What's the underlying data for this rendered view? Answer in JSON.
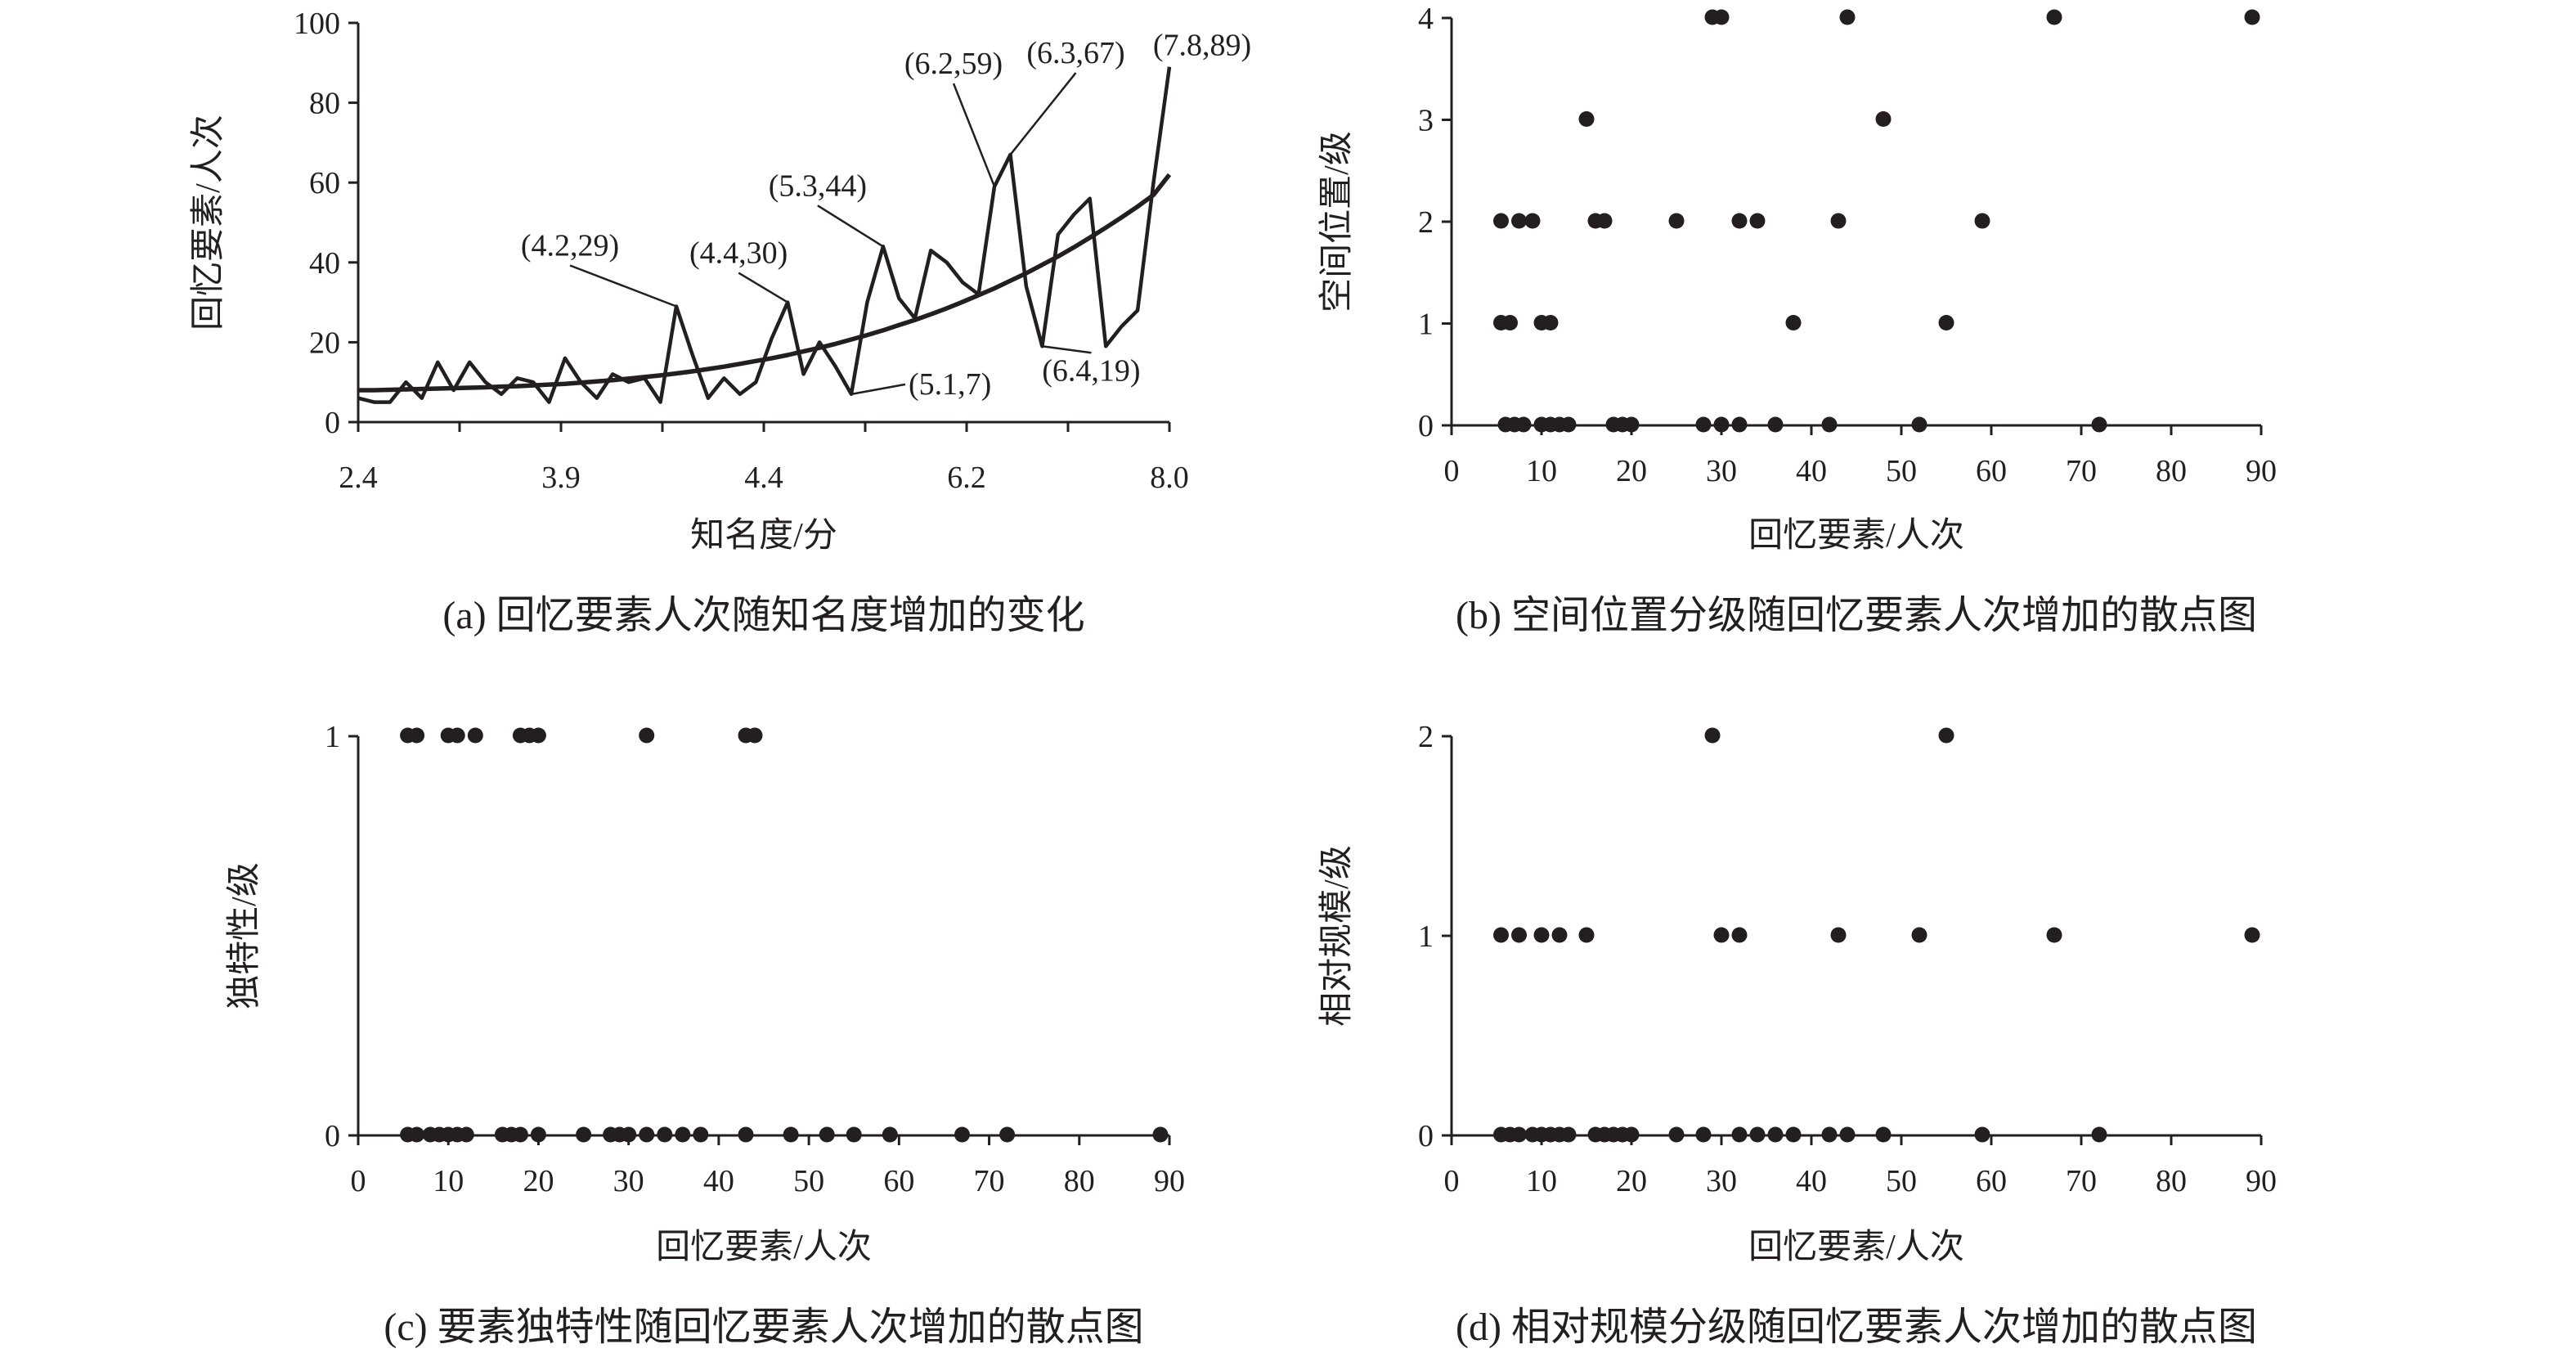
{
  "colors": {
    "ink": "#231f20",
    "background": "#ffffff"
  },
  "chart_data": [
    {
      "id": "a",
      "type": "line",
      "caption": "(a) 回忆要素人次随知名度增加的变化",
      "xlabel": "知名度/分",
      "ylabel": "回忆要素/人次",
      "ylim": [
        0,
        100
      ],
      "yticks": [
        "0",
        "20",
        "40",
        "60",
        "80",
        "100"
      ],
      "xtick_labels": [
        "2.4",
        "3.9",
        "4.4",
        "6.2",
        "8.0"
      ],
      "series": [
        {
          "style": "jagged",
          "values": [
            6,
            5,
            5,
            10,
            6,
            15,
            8,
            15,
            10,
            7,
            11,
            10,
            5,
            16,
            10,
            6,
            12,
            10,
            11,
            5,
            29,
            17,
            6,
            11,
            7,
            10,
            21,
            30,
            12,
            20,
            14,
            7,
            30,
            44,
            31,
            26,
            43,
            40,
            35,
            32,
            59,
            67,
            34,
            19,
            47,
            52,
            56,
            19,
            24,
            28,
            60,
            89
          ]
        },
        {
          "style": "smooth trend",
          "values": [
            8,
            8,
            8.1,
            8.2,
            8.3,
            8.4,
            8.5,
            8.6,
            8.7,
            8.9,
            9,
            9.2,
            9.4,
            9.6,
            9.9,
            10.2,
            10.5,
            10.9,
            11.3,
            11.7,
            12.2,
            12.7,
            13.3,
            13.9,
            14.6,
            15.3,
            16,
            16.8,
            17.7,
            18.6,
            19.6,
            20.7,
            21.8,
            23,
            24.3,
            25.6,
            27,
            28.5,
            30.1,
            31.8,
            33.5,
            35.4,
            37.3,
            39.4,
            41.5,
            43.8,
            46.2,
            48.7,
            51.3,
            54,
            56.9,
            62
          ]
        }
      ],
      "annotations": [
        {
          "label": "(4.2,29)",
          "index": 20,
          "value": 29
        },
        {
          "label": "(4.4,30)",
          "index": 27,
          "value": 30
        },
        {
          "label": "(5.3,44)",
          "index": 33,
          "value": 44
        },
        {
          "label": "(5.1,7)",
          "index": 31,
          "value": 7
        },
        {
          "label": "(6.2,59)",
          "index": 40,
          "value": 59
        },
        {
          "label": "(6.3,67)",
          "index": 41,
          "value": 67
        },
        {
          "label": "(6.4,19)",
          "index": 43,
          "value": 19
        },
        {
          "label": "(7.8,89)",
          "index": 51,
          "value": 89
        }
      ]
    },
    {
      "id": "b",
      "type": "scatter",
      "caption": "(b) 空间位置分级随回忆要素人次增加的散点图",
      "xlabel": "回忆要素/人次",
      "ylabel": "空间位置/级",
      "xlim": [
        0,
        90
      ],
      "ylim": [
        0,
        4
      ],
      "xticks": [
        "0",
        "10",
        "20",
        "30",
        "40",
        "50",
        "60",
        "70",
        "80",
        "90"
      ],
      "yticks": [
        "0",
        "1",
        "2",
        "3",
        "4"
      ],
      "points": [
        [
          6,
          0
        ],
        [
          7,
          0
        ],
        [
          8,
          0
        ],
        [
          10,
          0
        ],
        [
          11,
          0
        ],
        [
          12,
          0
        ],
        [
          13,
          0
        ],
        [
          18,
          0
        ],
        [
          19,
          0
        ],
        [
          20,
          0
        ],
        [
          28,
          0
        ],
        [
          30,
          0
        ],
        [
          32,
          0
        ],
        [
          36,
          0
        ],
        [
          42,
          0
        ],
        [
          52,
          0
        ],
        [
          72,
          0
        ],
        [
          5.5,
          1
        ],
        [
          6.5,
          1
        ],
        [
          10,
          1
        ],
        [
          11,
          1
        ],
        [
          38,
          1
        ],
        [
          55,
          1
        ],
        [
          5.5,
          2
        ],
        [
          7.5,
          2
        ],
        [
          9,
          2
        ],
        [
          16,
          2
        ],
        [
          17,
          2
        ],
        [
          25,
          2
        ],
        [
          32,
          2
        ],
        [
          34,
          2
        ],
        [
          43,
          2
        ],
        [
          59,
          2
        ],
        [
          15,
          3
        ],
        [
          48,
          3
        ],
        [
          29,
          4
        ],
        [
          30,
          4
        ],
        [
          44,
          4
        ],
        [
          67,
          4
        ],
        [
          89,
          4
        ]
      ]
    },
    {
      "id": "c",
      "type": "scatter",
      "caption": "(c) 要素独特性随回忆要素人次增加的散点图",
      "xlabel": "回忆要素/人次",
      "ylabel": "独特性/级",
      "xlim": [
        0,
        90
      ],
      "ylim": [
        0,
        1
      ],
      "xticks": [
        "0",
        "10",
        "20",
        "30",
        "40",
        "50",
        "60",
        "70",
        "80",
        "90"
      ],
      "yticks": [
        "0",
        "1"
      ],
      "points": [
        [
          5.5,
          0
        ],
        [
          6.5,
          0
        ],
        [
          8,
          0
        ],
        [
          9,
          0
        ],
        [
          10,
          0
        ],
        [
          11,
          0
        ],
        [
          12,
          0
        ],
        [
          16,
          0
        ],
        [
          17,
          0
        ],
        [
          18,
          0
        ],
        [
          20,
          0
        ],
        [
          25,
          0
        ],
        [
          28,
          0
        ],
        [
          29,
          0
        ],
        [
          30,
          0
        ],
        [
          32,
          0
        ],
        [
          34,
          0
        ],
        [
          36,
          0
        ],
        [
          38,
          0
        ],
        [
          43,
          0
        ],
        [
          48,
          0
        ],
        [
          52,
          0
        ],
        [
          55,
          0
        ],
        [
          59,
          0
        ],
        [
          67,
          0
        ],
        [
          72,
          0
        ],
        [
          89,
          0
        ],
        [
          5.5,
          1
        ],
        [
          6.5,
          1
        ],
        [
          10,
          1
        ],
        [
          11,
          1
        ],
        [
          13,
          1
        ],
        [
          18,
          1
        ],
        [
          19,
          1
        ],
        [
          20,
          1
        ],
        [
          32,
          1
        ],
        [
          43,
          1
        ],
        [
          44,
          1
        ]
      ]
    },
    {
      "id": "d",
      "type": "scatter",
      "caption": "(d) 相对规模分级随回忆要素人次增加的散点图",
      "xlabel": "回忆要素/人次",
      "ylabel": "相对规模/级",
      "xlim": [
        0,
        90
      ],
      "ylim": [
        0,
        2
      ],
      "xticks": [
        "0",
        "10",
        "20",
        "30",
        "40",
        "50",
        "60",
        "70",
        "80",
        "90"
      ],
      "yticks": [
        "0",
        "1",
        "2"
      ],
      "points": [
        [
          5.5,
          0
        ],
        [
          6.5,
          0
        ],
        [
          7.5,
          0
        ],
        [
          9,
          0
        ],
        [
          10,
          0
        ],
        [
          11,
          0
        ],
        [
          12,
          0
        ],
        [
          13,
          0
        ],
        [
          16,
          0
        ],
        [
          17,
          0
        ],
        [
          18,
          0
        ],
        [
          19,
          0
        ],
        [
          20,
          0
        ],
        [
          25,
          0
        ],
        [
          28,
          0
        ],
        [
          32,
          0
        ],
        [
          34,
          0
        ],
        [
          36,
          0
        ],
        [
          38,
          0
        ],
        [
          42,
          0
        ],
        [
          44,
          0
        ],
        [
          48,
          0
        ],
        [
          59,
          0
        ],
        [
          72,
          0
        ],
        [
          5.5,
          1
        ],
        [
          7.5,
          1
        ],
        [
          10,
          1
        ],
        [
          12,
          1
        ],
        [
          15,
          1
        ],
        [
          30,
          1
        ],
        [
          32,
          1
        ],
        [
          43,
          1
        ],
        [
          52,
          1
        ],
        [
          67,
          1
        ],
        [
          89,
          1
        ],
        [
          29,
          2
        ],
        [
          55,
          2
        ]
      ]
    }
  ]
}
